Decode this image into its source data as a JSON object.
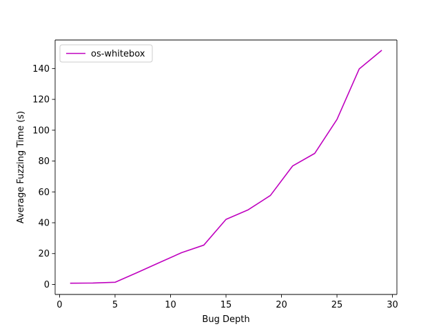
{
  "chart_data": {
    "type": "line",
    "title": "",
    "xlabel": "Bug Depth",
    "ylabel": "Average Fuzzing Time (s)",
    "xlim": [
      -0.4,
      30.4
    ],
    "ylim": [
      -6.5,
      158.5
    ],
    "xticks": [
      0,
      5,
      10,
      15,
      20,
      25,
      30
    ],
    "yticks": [
      0,
      20,
      40,
      60,
      80,
      100,
      120,
      140
    ],
    "grid": false,
    "legend_position": "top-left",
    "series": [
      {
        "name": "os-whitebox",
        "color": "#bf00bf",
        "x": [
          1,
          3,
          5,
          7,
          9,
          11,
          13,
          15,
          17,
          19,
          21,
          23,
          25,
          27,
          29
        ],
        "y": [
          0.8,
          0.9,
          1.4,
          7.7,
          14.2,
          20.6,
          25.5,
          42.2,
          48.4,
          57.7,
          76.8,
          85.0,
          107.0,
          139.7,
          151.6
        ]
      }
    ]
  }
}
